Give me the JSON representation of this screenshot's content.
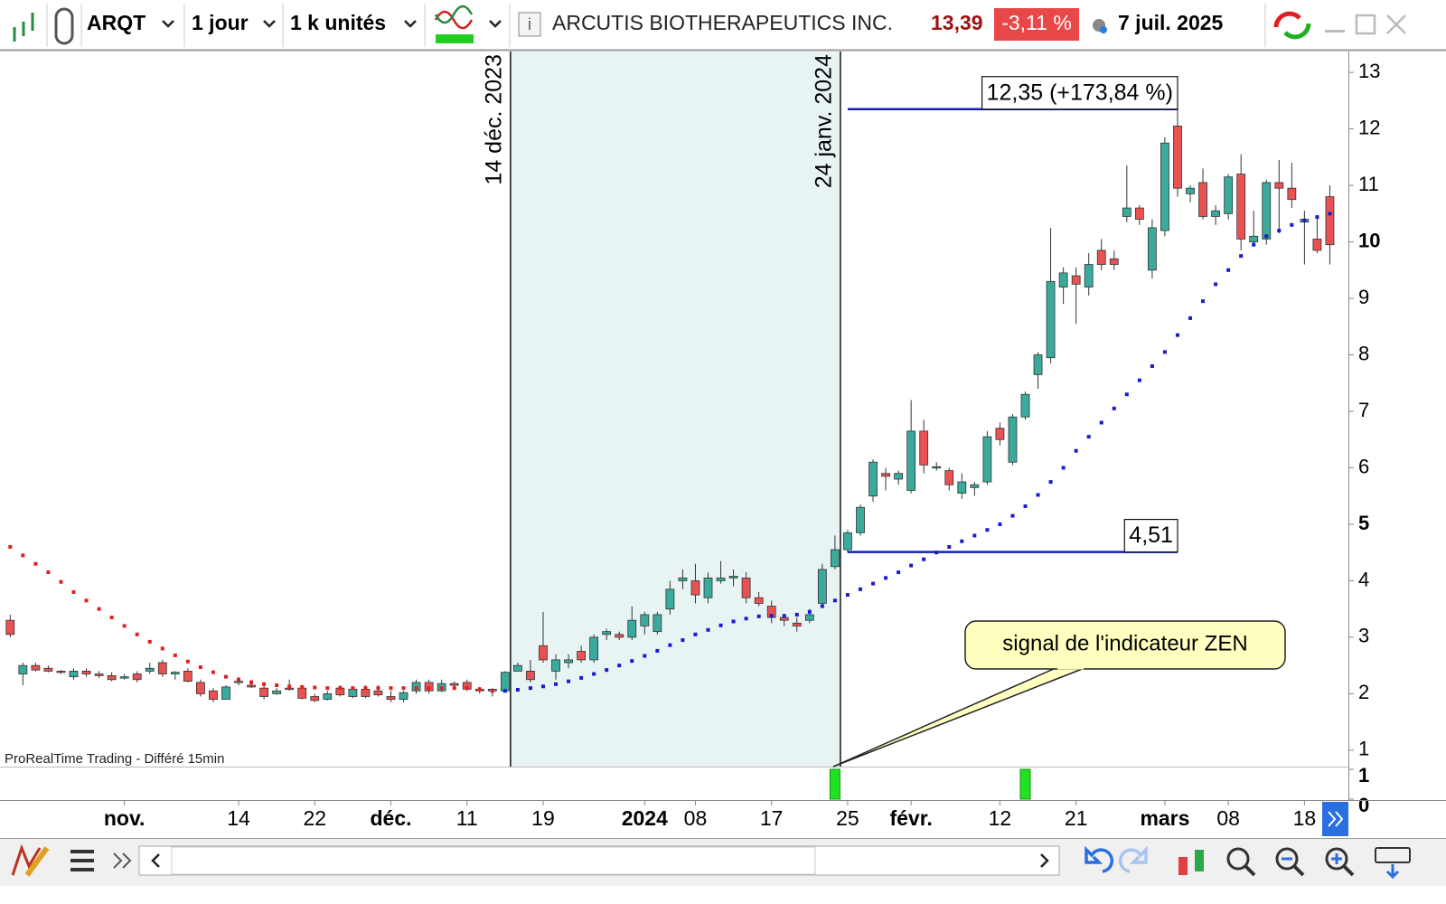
{
  "toolbar": {
    "symbol": "ARQT",
    "period": "1 jour",
    "units": "1 k unités",
    "name": "ARCUTIS BIOTHERAPEUTICS INC.",
    "price": "13,39",
    "change": "-3,11 %",
    "date": "7 juil. 2025"
  },
  "watermark": "ProRealTime Trading - Différé 15min",
  "callout": "signal de l'indicateur ZEN",
  "chart_data": {
    "type": "candlestick",
    "categories": [
      null,
      null,
      null,
      null,
      null,
      null,
      null,
      null,
      null,
      "nov.",
      null,
      null,
      null,
      null,
      null,
      null,
      null,
      null,
      "14",
      null,
      null,
      null,
      null,
      null,
      "22",
      null,
      null,
      null,
      null,
      null,
      "déc.",
      null,
      null,
      null,
      null,
      null,
      "11",
      null,
      null,
      null,
      null,
      null,
      "19",
      null,
      null,
      null,
      null,
      null,
      null,
      null,
      "2024",
      null,
      null,
      null,
      "08",
      null,
      null,
      null,
      null,
      null,
      "17",
      null,
      null,
      null,
      null,
      null,
      "25",
      null,
      null,
      null,
      null,
      "févr.",
      null,
      null,
      null,
      null,
      null,
      null,
      "12",
      null,
      null,
      null,
      null,
      null,
      "21",
      null,
      null,
      null,
      null,
      null,
      null,
      "mars",
      null,
      null,
      null,
      null,
      "08",
      null,
      null,
      null,
      null,
      null,
      "18",
      null,
      null
    ],
    "open": [
      3.3,
      2.35,
      2.5,
      2.45,
      2.4,
      2.3,
      2.4,
      2.35,
      2.32,
      2.28,
      2.35,
      2.4,
      2.55,
      2.35,
      2.4,
      2.2,
      2.05,
      1.9,
      2.2,
      2.15,
      2.1,
      2.0,
      2.1,
      2.1,
      1.95,
      1.9,
      2.1,
      1.95,
      2.08,
      2.05,
      1.95,
      1.9,
      2.05,
      2.2,
      2.05,
      2.18,
      2.2,
      2.08,
      2.05,
      2.05,
      2.4,
      2.4,
      2.85,
      2.4,
      2.55,
      2.75,
      2.6,
      3.05,
      3.05,
      3.0,
      3.2,
      3.1,
      3.5,
      4.0,
      4.0,
      3.7,
      4.0,
      4.05,
      4.05,
      3.7,
      3.55,
      3.35,
      3.25,
      3.3,
      3.6,
      4.25,
      4.55,
      4.85,
      5.5,
      5.9,
      5.8,
      5.6,
      6.65,
      6.0,
      5.95,
      5.55,
      5.65,
      5.75,
      6.7,
      6.1,
      6.9,
      7.65,
      7.95,
      9.2,
      9.4,
      9.2,
      9.85,
      9.7,
      10.45,
      10.6,
      9.5,
      10.2,
      12.05,
      10.85,
      11.05,
      10.45,
      10.5,
      11.2,
      10.0,
      10.05,
      11.05,
      10.95,
      10.35,
      10.05,
      10.8
    ],
    "high": [
      3.4,
      2.55,
      2.55,
      2.5,
      2.42,
      2.45,
      2.45,
      2.4,
      2.38,
      2.35,
      2.4,
      2.55,
      2.6,
      2.4,
      2.45,
      2.25,
      2.1,
      2.15,
      2.3,
      2.25,
      2.15,
      2.1,
      2.25,
      2.15,
      2.0,
      2.05,
      2.15,
      2.1,
      2.15,
      2.15,
      2.05,
      2.05,
      2.25,
      2.25,
      2.25,
      2.22,
      2.25,
      2.12,
      2.1,
      2.4,
      2.55,
      2.6,
      3.45,
      2.7,
      2.7,
      2.85,
      3.05,
      3.15,
      3.1,
      3.55,
      3.45,
      3.45,
      4.0,
      4.2,
      4.3,
      4.15,
      4.35,
      4.2,
      4.15,
      3.8,
      3.65,
      3.4,
      3.35,
      3.5,
      4.3,
      4.8,
      4.9,
      5.35,
      6.15,
      6.0,
      5.95,
      7.2,
      6.85,
      6.1,
      6.0,
      5.9,
      5.75,
      6.65,
      6.8,
      6.95,
      7.35,
      8.05,
      10.25,
      9.55,
      9.55,
      9.8,
      10.05,
      9.85,
      11.35,
      10.65,
      10.4,
      11.85,
      12.35,
      11.0,
      11.3,
      10.65,
      11.2,
      11.55,
      10.55,
      11.1,
      11.45,
      11.4,
      10.55,
      10.45,
      11.0
    ],
    "low": [
      3.0,
      2.15,
      2.4,
      2.38,
      2.35,
      2.25,
      2.3,
      2.28,
      2.22,
      2.25,
      2.2,
      2.35,
      2.3,
      2.25,
      2.2,
      1.95,
      1.85,
      1.9,
      2.15,
      2.1,
      1.9,
      1.98,
      2.05,
      1.9,
      1.85,
      1.88,
      1.95,
      1.92,
      1.92,
      1.95,
      1.85,
      1.85,
      2.0,
      2.0,
      2.03,
      2.1,
      2.05,
      2.0,
      1.95,
      2.05,
      2.4,
      2.2,
      2.55,
      2.25,
      2.45,
      2.55,
      2.55,
      2.95,
      2.95,
      2.95,
      3.05,
      3.05,
      3.4,
      3.85,
      3.6,
      3.6,
      3.95,
      3.9,
      3.6,
      3.55,
      3.25,
      3.2,
      3.1,
      3.25,
      3.55,
      4.2,
      4.5,
      4.8,
      5.4,
      5.6,
      5.7,
      5.55,
      5.9,
      5.95,
      5.6,
      5.45,
      5.5,
      5.7,
      6.4,
      6.05,
      6.85,
      7.4,
      7.85,
      8.9,
      8.55,
      9.05,
      9.5,
      9.5,
      10.35,
      10.3,
      9.35,
      10.1,
      10.8,
      10.7,
      10.4,
      10.3,
      10.4,
      9.85,
      9.95,
      9.95,
      10.15,
      10.6,
      9.6,
      9.8,
      9.6
    ],
    "close": [
      3.05,
      2.5,
      2.42,
      2.4,
      2.38,
      2.4,
      2.35,
      2.32,
      2.25,
      2.3,
      2.25,
      2.45,
      2.35,
      2.38,
      2.22,
      2.0,
      1.9,
      2.12,
      2.22,
      2.12,
      1.95,
      2.05,
      2.08,
      1.92,
      1.88,
      2.0,
      1.98,
      2.08,
      1.95,
      1.98,
      1.9,
      2.02,
      2.2,
      2.05,
      2.18,
      2.15,
      2.08,
      2.05,
      2.08,
      2.38,
      2.5,
      2.25,
      2.6,
      2.6,
      2.6,
      2.6,
      3.0,
      3.1,
      3.0,
      3.3,
      3.4,
      3.4,
      3.85,
      4.05,
      3.75,
      4.05,
      4.05,
      4.08,
      3.7,
      3.6,
      3.35,
      3.3,
      3.2,
      3.4,
      4.2,
      4.55,
      4.85,
      5.3,
      6.1,
      5.85,
      5.9,
      6.65,
      6.05,
      6.02,
      5.7,
      5.75,
      5.7,
      6.55,
      6.5,
      6.9,
      7.3,
      8.0,
      9.3,
      9.45,
      9.25,
      9.6,
      9.6,
      9.6,
      10.6,
      10.4,
      10.25,
      11.75,
      10.95,
      10.95,
      10.45,
      10.55,
      11.15,
      10.05,
      10.1,
      11.05,
      10.95,
      10.75,
      10.4,
      9.85,
      9.95
    ],
    "up_color": "#3aaa9c",
    "down_color": "#e85252",
    "series": [
      {
        "color": "#e02020",
        "values": [
          4.6,
          4.45,
          4.3,
          4.15,
          3.98,
          3.8,
          3.65,
          3.5,
          3.35,
          3.2,
          3.05,
          2.92,
          2.8,
          2.68,
          2.57,
          2.47,
          2.38,
          2.3,
          2.25,
          2.2,
          2.17,
          2.15,
          2.13,
          2.12,
          2.11,
          2.1,
          2.1,
          2.1,
          2.1,
          2.1,
          2.1,
          2.1,
          2.1,
          2.1,
          2.1,
          2.1,
          2.1,
          2.08,
          2.05,
          null,
          null,
          null,
          null,
          null,
          null,
          null,
          null,
          null,
          null,
          null,
          null,
          null,
          null,
          null,
          null,
          null,
          null,
          null,
          null,
          null,
          null,
          null,
          null,
          null,
          null,
          null,
          null,
          null,
          null,
          null,
          null,
          null,
          null,
          null,
          null,
          null,
          null,
          null,
          null,
          null,
          null,
          null,
          null,
          null,
          null,
          null,
          null,
          null,
          null,
          null,
          null,
          null,
          null,
          null,
          null,
          null,
          null,
          null,
          null,
          null,
          null,
          null,
          null,
          null,
          null
        ]
      },
      {
        "color": "#1a1ad0",
        "values": [
          null,
          null,
          null,
          null,
          null,
          null,
          null,
          null,
          null,
          null,
          null,
          null,
          null,
          null,
          null,
          null,
          null,
          null,
          null,
          null,
          null,
          null,
          null,
          null,
          null,
          null,
          null,
          null,
          null,
          null,
          null,
          null,
          null,
          null,
          null,
          null,
          null,
          null,
          null,
          2.05,
          2.07,
          2.1,
          2.13,
          2.17,
          2.22,
          2.28,
          2.35,
          2.42,
          2.5,
          2.58,
          2.67,
          2.76,
          2.86,
          2.95,
          3.05,
          3.13,
          3.21,
          3.28,
          3.33,
          3.37,
          3.38,
          3.38,
          3.4,
          3.45,
          3.55,
          3.65,
          3.75,
          3.85,
          3.95,
          4.05,
          4.15,
          4.27,
          4.38,
          4.5,
          4.6,
          4.7,
          4.8,
          4.9,
          5.0,
          5.15,
          5.32,
          5.52,
          5.75,
          6.0,
          6.3,
          6.55,
          6.8,
          7.05,
          7.3,
          7.55,
          7.8,
          8.05,
          8.35,
          8.65,
          8.95,
          9.25,
          9.5,
          9.75,
          9.95,
          10.1,
          10.2,
          10.3,
          10.38,
          10.44,
          10.5
        ]
      }
    ],
    "signal": [
      0,
      0,
      0,
      0,
      0,
      0,
      0,
      0,
      0,
      0,
      0,
      0,
      0,
      0,
      0,
      0,
      0,
      0,
      0,
      0,
      0,
      0,
      0,
      0,
      0,
      0,
      0,
      0,
      0,
      0,
      0,
      0,
      0,
      0,
      0,
      0,
      0,
      0,
      0,
      0,
      0,
      0,
      0,
      0,
      0,
      0,
      0,
      0,
      0,
      0,
      0,
      0,
      0,
      0,
      0,
      0,
      0,
      0,
      0,
      0,
      0,
      0,
      0,
      0,
      0,
      1,
      0,
      0,
      0,
      0,
      0,
      0,
      0,
      0,
      0,
      0,
      0,
      0,
      0,
      0,
      1,
      0,
      0,
      0,
      0,
      0,
      0,
      0,
      0,
      0,
      0,
      0,
      0,
      0,
      0,
      0,
      0,
      0,
      0,
      0,
      0,
      0,
      0,
      0,
      0
    ],
    "signal_color": "#22e022",
    "signal_ylim": [
      0,
      1
    ],
    "signal_yticks": [
      0,
      1
    ],
    "ylim": [
      0.71,
      13.37
    ],
    "yticks": [
      1,
      2,
      3,
      4,
      5,
      6,
      7,
      8,
      9,
      10,
      11,
      12,
      13
    ],
    "vlines": [
      {
        "label": "14 déc. 2023",
        "index": 39
      },
      {
        "label": "24 janv. 2024",
        "index": 65
      }
    ],
    "hlines": [
      {
        "value": 12.35,
        "label": "12,35 (+173,84 %)",
        "from": 66,
        "to": 92
      },
      {
        "value": 4.51,
        "label": "4,51",
        "from": 66,
        "to": 92
      }
    ]
  }
}
